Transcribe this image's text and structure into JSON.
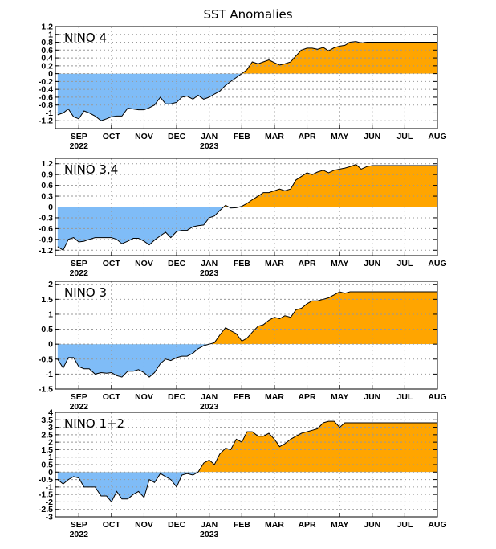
{
  "title": "SST Anomalies",
  "colors": {
    "positive": "#ffa500",
    "negative": "#7fbcf7",
    "line": "#000000",
    "grid": "#999999"
  },
  "x_axis": {
    "months": [
      "SEP",
      "OCT",
      "NOV",
      "DEC",
      "JAN",
      "FEB",
      "MAR",
      "APR",
      "MAY",
      "JUN",
      "JUL",
      "AUG"
    ],
    "year_labels": [
      {
        "under": "SEP",
        "text": "2022"
      },
      {
        "under": "JAN",
        "text": "2023"
      }
    ]
  },
  "chart_data": [
    {
      "type": "area",
      "label": "NINO 4",
      "ylim": [
        -1.4,
        1.2
      ],
      "yticks": [
        -1.2,
        -1,
        -0.8,
        -0.6,
        -0.4,
        -0.2,
        0,
        0.2,
        0.4,
        0.6,
        0.8,
        1,
        1.2
      ],
      "ytick_labels": [
        "-1.2",
        "-1",
        "-0.8",
        "-0.6",
        "-0.4",
        "-0.2",
        "0",
        "0.2",
        "0.4",
        "0.6",
        "0.8",
        "1",
        "1.2"
      ],
      "x": [
        -0.65,
        -0.48,
        -0.32,
        -0.16,
        0,
        0.16,
        0.32,
        0.5,
        0.68,
        0.85,
        1,
        1.16,
        1.32,
        1.5,
        1.67,
        1.83,
        2,
        2.16,
        2.32,
        2.5,
        2.66,
        2.82,
        3,
        3.16,
        3.32,
        3.5,
        3.66,
        3.83,
        4,
        4.16,
        4.32,
        4.5,
        4.66,
        4.83,
        5,
        5.16,
        5.32,
        5.5,
        5.66,
        5.83,
        6,
        6.16,
        6.32,
        6.5,
        6.66,
        6.83,
        7,
        7.16,
        7.32,
        7.5,
        7.66,
        7.83,
        8,
        8.16,
        8.32,
        8.5,
        8.66,
        8.83,
        9,
        9.16,
        9.32,
        9.5,
        9.66,
        9.83,
        10,
        10.16,
        10.32,
        10.5,
        10.66,
        10.83,
        11
      ],
      "y": [
        -1.05,
        -1.0,
        -0.9,
        -1.1,
        -1.15,
        -0.95,
        -1.0,
        -1.08,
        -1.2,
        -1.15,
        -1.1,
        -1.08,
        -1.08,
        -0.88,
        -0.9,
        -0.92,
        -0.92,
        -0.87,
        -0.8,
        -0.6,
        -0.77,
        -0.77,
        -0.73,
        -0.6,
        -0.57,
        -0.65,
        -0.55,
        -0.65,
        -0.6,
        -0.52,
        -0.45,
        -0.3,
        -0.2,
        -0.1,
        0.0,
        0.1,
        0.3,
        0.25,
        0.3,
        0.35,
        0.28,
        0.22,
        0.25,
        0.3,
        0.45,
        0.6,
        0.65,
        0.65,
        0.62,
        0.67,
        0.58,
        0.66,
        0.7,
        0.72,
        0.8,
        0.82,
        0.78,
        0.8,
        0.8,
        0.8,
        0.8,
        0.8,
        0.8,
        0.8,
        0.8,
        0.8,
        0.8,
        0.8,
        0.8,
        0.8,
        0.8
      ]
    },
    {
      "type": "area",
      "label": "NINO 3.4",
      "ylim": [
        -1.35,
        1.35
      ],
      "yticks": [
        -1.2,
        -0.9,
        -0.6,
        -0.3,
        0,
        0.3,
        0.6,
        0.9,
        1.2
      ],
      "ytick_labels": [
        "-1.2",
        "-0.9",
        "-0.6",
        "-0.3",
        "0",
        "0.3",
        "0.6",
        "0.9",
        "1.2"
      ],
      "x": [
        -0.65,
        -0.48,
        -0.32,
        -0.16,
        0,
        0.16,
        0.32,
        0.5,
        0.68,
        0.85,
        1,
        1.16,
        1.32,
        1.5,
        1.67,
        1.83,
        2,
        2.16,
        2.32,
        2.5,
        2.66,
        2.82,
        3,
        3.16,
        3.32,
        3.5,
        3.66,
        3.83,
        4,
        4.16,
        4.32,
        4.5,
        4.66,
        4.83,
        5,
        5.16,
        5.32,
        5.5,
        5.66,
        5.83,
        6,
        6.16,
        6.32,
        6.5,
        6.66,
        6.83,
        7,
        7.16,
        7.32,
        7.5,
        7.66,
        7.83,
        8,
        8.16,
        8.32,
        8.5,
        8.66,
        8.83,
        9,
        9.16,
        9.32,
        9.5,
        9.66,
        9.83,
        10,
        10.16,
        10.32,
        10.5,
        10.66,
        10.83,
        11
      ],
      "y": [
        -1.1,
        -1.2,
        -0.9,
        -0.85,
        -0.97,
        -0.95,
        -0.9,
        -0.85,
        -0.85,
        -0.85,
        -0.85,
        -0.9,
        -1.02,
        -0.95,
        -0.87,
        -0.87,
        -0.95,
        -1.05,
        -0.92,
        -0.8,
        -0.7,
        -0.85,
        -0.68,
        -0.65,
        -0.65,
        -0.55,
        -0.52,
        -0.5,
        -0.3,
        -0.25,
        -0.1,
        0.05,
        -0.03,
        -0.02,
        0.02,
        0.1,
        0.2,
        0.3,
        0.4,
        0.4,
        0.45,
        0.5,
        0.45,
        0.5,
        0.75,
        0.85,
        0.95,
        0.9,
        0.97,
        1.02,
        0.95,
        1.02,
        1.05,
        1.08,
        1.12,
        1.18,
        1.05,
        1.12,
        1.15,
        1.15,
        1.15,
        1.15,
        1.15,
        1.15,
        1.15,
        1.15,
        1.15,
        1.15,
        1.15,
        1.15,
        1.15
      ]
    },
    {
      "type": "area",
      "label": "NINO 3",
      "ylim": [
        -1.5,
        2.1
      ],
      "yticks": [
        -1.5,
        -1,
        -0.5,
        0,
        0.5,
        1,
        1.5,
        2
      ],
      "ytick_labels": [
        "-1.5",
        "-1",
        "-0.5",
        "0",
        "0.5",
        "1",
        "1.5",
        "2"
      ],
      "x": [
        -0.65,
        -0.48,
        -0.32,
        -0.16,
        0,
        0.16,
        0.32,
        0.5,
        0.68,
        0.85,
        1,
        1.16,
        1.32,
        1.5,
        1.67,
        1.83,
        2,
        2.16,
        2.32,
        2.5,
        2.66,
        2.82,
        3,
        3.16,
        3.32,
        3.5,
        3.66,
        3.83,
        4,
        4.16,
        4.32,
        4.5,
        4.66,
        4.83,
        5,
        5.16,
        5.32,
        5.5,
        5.66,
        5.83,
        6,
        6.16,
        6.32,
        6.5,
        6.66,
        6.83,
        7,
        7.16,
        7.32,
        7.5,
        7.66,
        7.83,
        8,
        8.16,
        8.32,
        8.5,
        8.66,
        8.83,
        9,
        9.16,
        9.32,
        9.5,
        9.66,
        9.83,
        10,
        10.16,
        10.32,
        10.5,
        10.66,
        10.83,
        11
      ],
      "y": [
        -0.5,
        -0.8,
        -0.45,
        -0.45,
        -0.75,
        -0.82,
        -0.82,
        -1.0,
        -0.95,
        -0.97,
        -0.95,
        -1.05,
        -1.1,
        -0.9,
        -0.9,
        -0.85,
        -0.95,
        -1.1,
        -0.95,
        -0.65,
        -0.5,
        -0.55,
        -0.45,
        -0.4,
        -0.4,
        -0.3,
        -0.15,
        -0.05,
        0.0,
        0.05,
        0.3,
        0.55,
        0.45,
        0.35,
        0.1,
        0.2,
        0.4,
        0.6,
        0.65,
        0.8,
        0.9,
        0.85,
        0.95,
        0.9,
        1.15,
        1.2,
        1.35,
        1.45,
        1.45,
        1.5,
        1.55,
        1.65,
        1.75,
        1.7,
        1.75,
        1.75,
        1.75,
        1.75,
        1.75,
        1.75,
        1.75,
        1.75,
        1.75,
        1.75,
        1.75,
        1.75,
        1.75,
        1.75,
        1.75,
        1.75,
        1.75
      ]
    },
    {
      "type": "area",
      "label": "NINO 1+2",
      "ylim": [
        -3,
        4
      ],
      "yticks": [
        -3,
        -2.5,
        -2,
        -1.5,
        -1,
        -0.5,
        0,
        0.5,
        1,
        1.5,
        2,
        2.5,
        3,
        3.5,
        4
      ],
      "ytick_labels": [
        "-3",
        "-2.5",
        "-2",
        "-1.5",
        "-1",
        "-0.5",
        "0",
        "0.5",
        "1",
        "1.5",
        "2",
        "2.5",
        "3",
        "3.5",
        "4"
      ],
      "x": [
        -0.65,
        -0.48,
        -0.32,
        -0.16,
        0,
        0.16,
        0.32,
        0.5,
        0.68,
        0.85,
        1,
        1.16,
        1.32,
        1.5,
        1.67,
        1.83,
        2,
        2.16,
        2.32,
        2.5,
        2.66,
        2.82,
        3,
        3.16,
        3.32,
        3.5,
        3.66,
        3.83,
        4,
        4.16,
        4.32,
        4.5,
        4.66,
        4.83,
        5,
        5.16,
        5.32,
        5.5,
        5.66,
        5.83,
        6,
        6.16,
        6.32,
        6.5,
        6.66,
        6.83,
        7,
        7.16,
        7.32,
        7.5,
        7.66,
        7.83,
        8,
        8.16,
        8.32,
        8.5,
        8.66,
        8.83,
        9,
        9.16,
        9.32,
        9.5,
        9.66,
        9.83,
        10,
        10.16,
        10.32,
        10.5,
        10.66,
        10.83,
        11
      ],
      "y": [
        -0.5,
        -0.8,
        -0.5,
        -0.3,
        -0.4,
        -1.0,
        -1.0,
        -1.0,
        -1.6,
        -1.6,
        -2.0,
        -1.3,
        -1.8,
        -1.8,
        -1.5,
        -1.3,
        -1.7,
        -0.5,
        -0.7,
        -0.1,
        -0.3,
        -0.5,
        -1.0,
        -0.2,
        -0.1,
        -0.2,
        0.0,
        0.6,
        0.8,
        0.5,
        1.2,
        1.6,
        1.5,
        2.2,
        2.0,
        2.7,
        2.7,
        2.4,
        2.4,
        2.6,
        2.2,
        1.7,
        1.9,
        2.2,
        2.4,
        2.6,
        2.7,
        2.8,
        2.9,
        3.3,
        3.4,
        3.4,
        3.0,
        3.3,
        3.3,
        3.3,
        3.3,
        3.3,
        3.3,
        3.3,
        3.3,
        3.3,
        3.3,
        3.3,
        3.3,
        3.3,
        3.3,
        3.3,
        3.3,
        3.3,
        3.3
      ]
    }
  ]
}
